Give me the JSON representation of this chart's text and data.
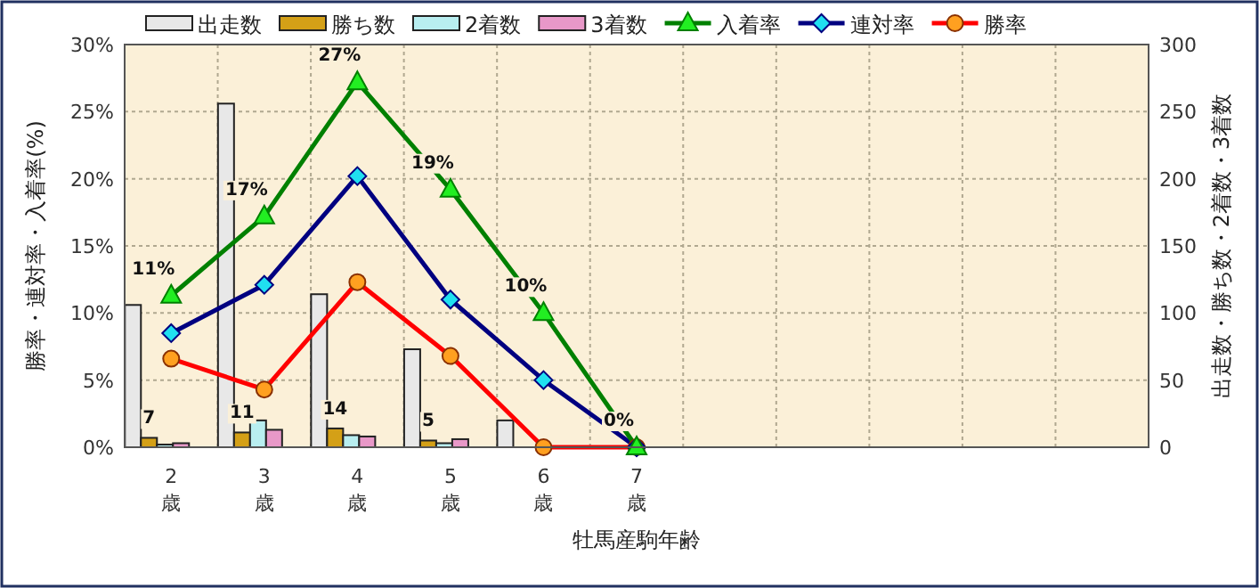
{
  "chart_data": {
    "type": "bar",
    "xlabel": "牡馬産駒年齢",
    "ylabel": "勝率・連対率・入着率(%)",
    "y2label": "出走数・勝ち数・2着数・3着数",
    "categories": [
      "2歳",
      "3歳",
      "4歳",
      "5歳",
      "6歳",
      "7歳",
      null,
      null,
      null,
      null,
      null
    ],
    "ylim": [
      0,
      30
    ],
    "yticks": [
      {
        "value": 0,
        "label": "0%"
      },
      {
        "value": 5,
        "label": "5%"
      },
      {
        "value": 10,
        "label": "10%"
      },
      {
        "value": 15,
        "label": "15%"
      },
      {
        "value": 20,
        "label": "20%"
      },
      {
        "value": 25,
        "label": "25%"
      },
      {
        "value": 30,
        "label": "30%"
      }
    ],
    "y2lim": [
      0,
      300
    ],
    "y2ticks": [
      0,
      50,
      100,
      150,
      200,
      250,
      300
    ],
    "grid": true,
    "legend": "top",
    "series": [
      {
        "name": "出走数",
        "axis": "y2",
        "color": "#e8e8e8",
        "values": [
          106,
          256,
          114,
          73,
          20,
          null,
          null,
          null,
          null,
          null,
          null
        ]
      },
      {
        "name": "勝ち数",
        "axis": "y2",
        "color": "#d4a017",
        "values": [
          7,
          11,
          14,
          5,
          0,
          0,
          null,
          null,
          null,
          null,
          null
        ],
        "value_labels": [
          "7",
          "11",
          "14",
          "5",
          null,
          null,
          null,
          null,
          null,
          null,
          null
        ]
      },
      {
        "name": "2着数",
        "axis": "y2",
        "color": "#b8eef0",
        "values": [
          2,
          20,
          9,
          3,
          null,
          0,
          null,
          null,
          null,
          null,
          null
        ]
      },
      {
        "name": "3着数",
        "axis": "y2",
        "color": "#e898c8",
        "values": [
          3,
          13,
          8,
          6,
          null,
          0,
          null,
          null,
          null,
          null,
          null
        ]
      },
      {
        "name": "入着率",
        "type": "line",
        "marker": "triangle",
        "color": "#008000",
        "values": [
          11.3,
          17.2,
          27.2,
          19.2,
          10.0,
          0,
          null,
          null,
          null,
          null,
          null
        ],
        "value_labels": [
          "11%",
          "17%",
          "27%",
          "19%",
          "10%",
          "0%",
          null,
          null,
          null,
          null,
          null
        ]
      },
      {
        "name": "連対率",
        "type": "line",
        "marker": "diamond",
        "color": "#000080",
        "values": [
          8.5,
          12.1,
          20.2,
          11.0,
          5.0,
          0,
          null,
          null,
          null,
          null,
          null
        ]
      },
      {
        "name": "勝率",
        "type": "line",
        "marker": "circle",
        "color": "#ff0000",
        "values": [
          6.6,
          4.3,
          12.3,
          6.8,
          0,
          0,
          null,
          null,
          null,
          null,
          null
        ]
      }
    ]
  }
}
